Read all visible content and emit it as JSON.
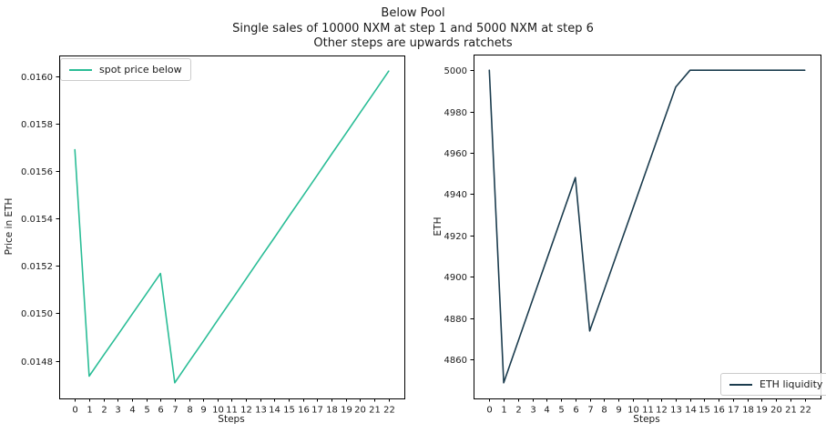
{
  "figure": {
    "title_lines": {
      "line1": "Below Pool",
      "line2": "Single sales of 10000 NXM at step 1 and 5000 NXM at step 6",
      "line3": "Other steps are upwards ratchets"
    }
  },
  "chart_data": [
    {
      "type": "line",
      "name": "spot-price-below",
      "xlabel": "Steps",
      "ylabel": "Price in ETH",
      "legend": {
        "label": "spot price below",
        "position": "upper left"
      },
      "grid": false,
      "x": [
        0,
        1,
        2,
        3,
        4,
        5,
        6,
        7,
        8,
        9,
        10,
        11,
        12,
        13,
        14,
        15,
        16,
        17,
        18,
        19,
        20,
        21,
        22
      ],
      "series": [
        {
          "name": "spot price below",
          "color": "#2abd96",
          "values": [
            0.01569,
            0.014735,
            0.014822,
            0.014908,
            0.014995,
            0.015081,
            0.015168,
            0.014707,
            0.014795,
            0.014882,
            0.01497,
            0.015057,
            0.015145,
            0.015233,
            0.01532,
            0.015408,
            0.015495,
            0.015583,
            0.015671,
            0.015758,
            0.015846,
            0.015933,
            0.016021
          ]
        }
      ],
      "xlim": [
        -1.1,
        23.1
      ],
      "ylim": [
        0.014641,
        0.016087
      ],
      "xticks": [
        0,
        1,
        2,
        3,
        4,
        5,
        6,
        7,
        8,
        9,
        10,
        11,
        12,
        13,
        14,
        15,
        16,
        17,
        18,
        19,
        20,
        21,
        22
      ],
      "ytick_values": [
        0.0148,
        0.015,
        0.0152,
        0.0154,
        0.0156,
        0.0158,
        0.016
      ],
      "ytick_labels": [
        "0.0148",
        "0.0150",
        "0.0152",
        "0.0154",
        "0.0156",
        "0.0158",
        "0.0160"
      ]
    },
    {
      "type": "line",
      "name": "eth-liquidity",
      "xlabel": "Steps",
      "ylabel": "ETH",
      "legend": {
        "label": "ETH liquidity",
        "position": "lower right"
      },
      "grid": false,
      "x": [
        0,
        1,
        2,
        3,
        4,
        5,
        6,
        7,
        8,
        9,
        10,
        11,
        12,
        13,
        14,
        15,
        16,
        17,
        18,
        19,
        20,
        21,
        22
      ],
      "series": [
        {
          "name": "ETH liquidity",
          "color": "#1b3c4e",
          "values": [
            5000,
            4848.6,
            4868.5,
            4888.4,
            4908.3,
            4928.1,
            4948.0,
            4873.7,
            4893.4,
            4913.1,
            4932.8,
            4952.5,
            4972.2,
            4991.9,
            5000,
            5000,
            5000,
            5000,
            5000,
            5000,
            5000,
            5000,
            5000
          ]
        }
      ],
      "xlim": [
        -1.1,
        23.1
      ],
      "ylim": [
        4841.0,
        5007.6
      ],
      "xticks": [
        0,
        1,
        2,
        3,
        4,
        5,
        6,
        7,
        8,
        9,
        10,
        11,
        12,
        13,
        14,
        15,
        16,
        17,
        18,
        19,
        20,
        21,
        22
      ],
      "ytick_values": [
        4860,
        4880,
        4900,
        4920,
        4940,
        4960,
        4980,
        5000
      ],
      "ytick_labels": [
        "4860",
        "4880",
        "4900",
        "4920",
        "4940",
        "4960",
        "4980",
        "5000"
      ]
    }
  ]
}
